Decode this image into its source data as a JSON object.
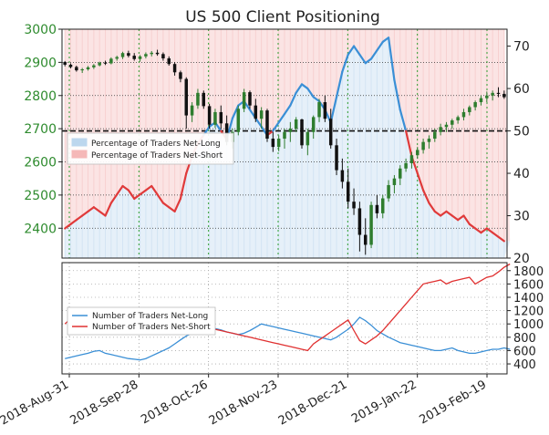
{
  "chart_data": [
    {
      "type": "candlestick+line+area",
      "title": "US 500 Client Positioning",
      "panel": "top",
      "left_axis": {
        "ticks": [
          2400,
          2500,
          2600,
          2700,
          2800,
          2900,
          3000
        ],
        "range": [
          2310,
          3000
        ],
        "tick_color": "#2e8b2e"
      },
      "right_axis": {
        "ticks": [
          20,
          30,
          40,
          50,
          60,
          70
        ],
        "range": [
          20,
          74
        ]
      },
      "legend": {
        "placement": "center-left",
        "entries": [
          {
            "label": "Percentage of Traders Net-Long",
            "color": "#bcd7ee"
          },
          {
            "label": "Percentage of Traders Net-Short",
            "color": "#f5b8b8"
          }
        ]
      },
      "reference_line": 50,
      "grid": true,
      "price": [
        [
          2901,
          2904,
          2888,
          2893
        ],
        [
          2893,
          2897,
          2882,
          2886
        ],
        [
          2886,
          2890,
          2872,
          2876
        ],
        [
          2876,
          2883,
          2868,
          2879
        ],
        [
          2879,
          2889,
          2875,
          2885
        ],
        [
          2885,
          2895,
          2880,
          2891
        ],
        [
          2891,
          2902,
          2888,
          2899
        ],
        [
          2899,
          2905,
          2892,
          2897
        ],
        [
          2897,
          2915,
          2894,
          2911
        ],
        [
          2911,
          2920,
          2905,
          2916
        ],
        [
          2916,
          2932,
          2910,
          2928
        ],
        [
          2928,
          2935,
          2915,
          2920
        ],
        [
          2920,
          2928,
          2905,
          2910
        ],
        [
          2910,
          2922,
          2902,
          2918
        ],
        [
          2918,
          2930,
          2912,
          2925
        ],
        [
          2925,
          2934,
          2918,
          2929
        ],
        [
          2929,
          2938,
          2920,
          2925
        ],
        [
          2925,
          2930,
          2905,
          2912
        ],
        [
          2912,
          2918,
          2890,
          2895
        ],
        [
          2895,
          2900,
          2860,
          2870
        ],
        [
          2870,
          2875,
          2840,
          2850
        ],
        [
          2850,
          2855,
          2700,
          2740
        ],
        [
          2740,
          2780,
          2720,
          2770
        ],
        [
          2770,
          2820,
          2760,
          2808
        ],
        [
          2808,
          2815,
          2760,
          2768
        ],
        [
          2768,
          2775,
          2700,
          2712
        ],
        [
          2712,
          2760,
          2702,
          2750
        ],
        [
          2750,
          2770,
          2700,
          2716
        ],
        [
          2716,
          2740,
          2650,
          2660
        ],
        [
          2660,
          2700,
          2640,
          2690
        ],
        [
          2690,
          2770,
          2680,
          2760
        ],
        [
          2760,
          2820,
          2750,
          2810
        ],
        [
          2810,
          2815,
          2760,
          2770
        ],
        [
          2770,
          2790,
          2720,
          2730
        ],
        [
          2730,
          2765,
          2700,
          2755
        ],
        [
          2755,
          2760,
          2660,
          2670
        ],
        [
          2670,
          2690,
          2630,
          2645
        ],
        [
          2645,
          2680,
          2632,
          2670
        ],
        [
          2670,
          2700,
          2640,
          2690
        ],
        [
          2690,
          2720,
          2660,
          2700
        ],
        [
          2700,
          2735,
          2690,
          2728
        ],
        [
          2728,
          2730,
          2640,
          2650
        ],
        [
          2650,
          2700,
          2620,
          2690
        ],
        [
          2690,
          2740,
          2670,
          2735
        ],
        [
          2735,
          2790,
          2720,
          2780
        ],
        [
          2780,
          2800,
          2720,
          2730
        ],
        [
          2730,
          2760,
          2640,
          2650
        ],
        [
          2650,
          2670,
          2560,
          2575
        ],
        [
          2575,
          2610,
          2520,
          2540
        ],
        [
          2540,
          2580,
          2460,
          2480
        ],
        [
          2480,
          2520,
          2440,
          2460
        ],
        [
          2460,
          2480,
          2330,
          2380
        ],
        [
          2380,
          2430,
          2320,
          2350
        ],
        [
          2350,
          2480,
          2340,
          2470
        ],
        [
          2470,
          2500,
          2430,
          2445
        ],
        [
          2445,
          2500,
          2430,
          2490
        ],
        [
          2490,
          2545,
          2480,
          2530
        ],
        [
          2530,
          2560,
          2505,
          2550
        ],
        [
          2550,
          2590,
          2530,
          2580
        ],
        [
          2580,
          2610,
          2570,
          2596
        ],
        [
          2596,
          2630,
          2580,
          2620
        ],
        [
          2620,
          2645,
          2610,
          2636
        ],
        [
          2636,
          2670,
          2625,
          2660
        ],
        [
          2660,
          2680,
          2640,
          2670
        ],
        [
          2670,
          2700,
          2660,
          2690
        ],
        [
          2690,
          2715,
          2680,
          2705
        ],
        [
          2705,
          2720,
          2690,
          2712
        ],
        [
          2712,
          2730,
          2700,
          2725
        ],
        [
          2725,
          2740,
          2715,
          2735
        ],
        [
          2735,
          2760,
          2725,
          2750
        ],
        [
          2750,
          2770,
          2740,
          2765
        ],
        [
          2765,
          2785,
          2755,
          2780
        ],
        [
          2780,
          2800,
          2770,
          2792
        ],
        [
          2792,
          2812,
          2780,
          2800
        ],
        [
          2800,
          2815,
          2785,
          2808
        ],
        [
          2808,
          2825,
          2795,
          2805
        ],
        [
          2805,
          2815,
          2790,
          2795
        ]
      ],
      "net_long_pct": [
        27,
        28,
        29,
        30,
        31,
        32,
        31,
        30,
        33,
        35,
        37,
        36,
        34,
        35,
        36,
        37,
        35,
        33,
        32,
        31,
        34,
        40,
        44,
        47,
        49,
        51,
        52,
        50,
        48,
        53,
        56,
        57,
        55,
        53,
        51,
        49,
        50,
        52,
        54,
        56,
        59,
        61,
        60,
        58,
        57,
        55,
        52,
        58,
        64,
        68,
        70,
        68,
        66,
        67,
        69,
        71,
        72,
        62,
        55,
        50,
        44,
        40,
        36,
        33,
        31,
        30,
        31,
        30,
        29,
        30,
        28,
        27,
        26,
        27,
        26,
        25,
        24,
        24
      ],
      "bottom_panel_ref": "panel-2"
    },
    {
      "type": "line",
      "panel": "bottom",
      "right_axis": {
        "ticks": [
          400,
          600,
          800,
          1000,
          1200,
          1400,
          1600,
          1800
        ],
        "range": [
          250,
          1920
        ]
      },
      "legend": {
        "placement": "center-left",
        "entries": [
          {
            "label": "Number of Traders Net-Long",
            "color": "#3a8fd6"
          },
          {
            "label": "Number of Traders Net-Short",
            "color": "#e03030"
          }
        ]
      },
      "series": [
        {
          "name": "Number of Traders Net-Long",
          "color": "#3a8fd6",
          "values": [
            480,
            500,
            520,
            540,
            560,
            590,
            600,
            560,
            540,
            520,
            500,
            480,
            470,
            460,
            480,
            520,
            560,
            600,
            640,
            700,
            760,
            820,
            860,
            880,
            900,
            920,
            930,
            910,
            880,
            860,
            840,
            860,
            900,
            950,
            1000,
            980,
            960,
            940,
            920,
            900,
            880,
            860,
            840,
            820,
            800,
            780,
            760,
            800,
            860,
            920,
            1000,
            1100,
            1050,
            980,
            900,
            850,
            800,
            760,
            720,
            700,
            680,
            660,
            640,
            620,
            600,
            600,
            620,
            640,
            600,
            580,
            560,
            560,
            580,
            600,
            620,
            620,
            640,
            620
          ]
        },
        {
          "name": "Number of Traders Net-Short",
          "color": "#e03030",
          "values": [
            1000,
            1080,
            1100,
            1050,
            1120,
            1160,
            1150,
            1140,
            1100,
            1060,
            1000,
            960,
            920,
            900,
            940,
            960,
            980,
            1000,
            960,
            900,
            880,
            860,
            880,
            900,
            920,
            940,
            920,
            900,
            880,
            860,
            840,
            820,
            800,
            780,
            760,
            740,
            720,
            700,
            680,
            660,
            640,
            620,
            600,
            700,
            760,
            820,
            880,
            940,
            1000,
            1060,
            900,
            750,
            700,
            760,
            820,
            900,
            1000,
            1100,
            1200,
            1300,
            1400,
            1500,
            1600,
            1620,
            1640,
            1660,
            1600,
            1640,
            1660,
            1680,
            1700,
            1600,
            1650,
            1700,
            1720,
            1780,
            1850,
            1900
          ]
        }
      ],
      "grid": true
    }
  ],
  "x_axis": {
    "ticks": [
      "2018-Aug-31",
      "2018-Sep-28",
      "2018-Oct-26",
      "2018-Nov-23",
      "2018-Dec-21",
      "2019-Jan-22",
      "2019-Feb-19"
    ]
  }
}
